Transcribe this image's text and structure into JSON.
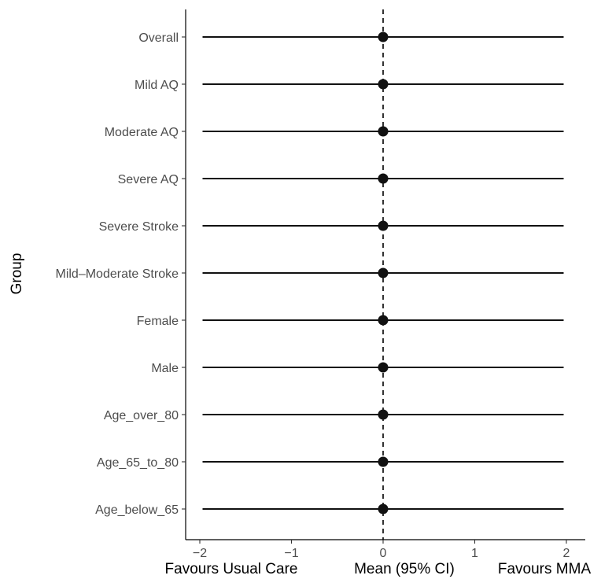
{
  "chart_data": {
    "type": "forest",
    "title": "",
    "ylabel": "Group",
    "xlabel_left": "Favours Usual Care",
    "xlabel_center": "Mean (95% CI)",
    "xlabel_right": "Favours MMA",
    "xlim": [
      -2.1,
      2.1
    ],
    "x_ticks": [
      -2,
      -1,
      0,
      1,
      2
    ],
    "x_tick_labels": [
      "−2",
      "−1",
      "0",
      "1",
      "2"
    ],
    "reference_line": 0,
    "grid": false,
    "groups": [
      {
        "label": "Overall",
        "mean": 0,
        "lower": -1.97,
        "upper": 1.97
      },
      {
        "label": "Mild AQ",
        "mean": 0,
        "lower": -1.97,
        "upper": 1.97
      },
      {
        "label": "Moderate AQ",
        "mean": 0,
        "lower": -1.97,
        "upper": 1.97
      },
      {
        "label": "Severe AQ",
        "mean": 0,
        "lower": -1.97,
        "upper": 1.97
      },
      {
        "label": "Severe Stroke",
        "mean": 0,
        "lower": -1.97,
        "upper": 1.97
      },
      {
        "label": "Mild–Moderate Stroke",
        "mean": 0,
        "lower": -1.97,
        "upper": 1.97
      },
      {
        "label": "Female",
        "mean": 0,
        "lower": -1.97,
        "upper": 1.97
      },
      {
        "label": "Male",
        "mean": 0,
        "lower": -1.97,
        "upper": 1.97
      },
      {
        "label": "Age_over_80",
        "mean": 0,
        "lower": -1.97,
        "upper": 1.97
      },
      {
        "label": "Age_65_to_80",
        "mean": 0,
        "lower": -1.97,
        "upper": 1.97
      },
      {
        "label": "Age_below_65",
        "mean": 0,
        "lower": -1.97,
        "upper": 1.97
      }
    ]
  }
}
